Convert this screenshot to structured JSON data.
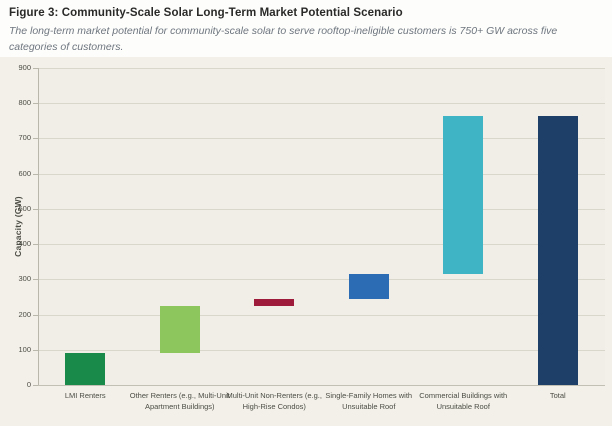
{
  "figure": {
    "title": "Figure 3: Community-Scale Solar Long-Term Market Potential Scenario",
    "subtitle": "The long-term market potential for community-scale solar to serve rooftop-ineligible customers is 750+ GW across five categories of customers."
  },
  "colors": {
    "panel_bg": "#f2f0e9",
    "plot_bg": "#f0eee6",
    "gridline": "#d9d7cc",
    "axis_line": "#b9b7ab",
    "baseline": "#c2c0b4",
    "axis_text": "#4c4c45",
    "title_text": "#2a2a28",
    "subtitle_text": "#6e767e"
  },
  "chart_data": {
    "type": "bar",
    "variant": "waterfall",
    "title": "Figure 3: Community-Scale Solar Long-Term Market Potential Scenario",
    "xlabel": "",
    "ylabel": "Capacity (GW)",
    "ylim": [
      0,
      900
    ],
    "yticks": [
      0,
      100,
      200,
      300,
      400,
      500,
      600,
      700,
      800,
      900
    ],
    "grid": true,
    "legend": false,
    "categories": [
      "LMI Renters",
      "Other Renters (e.g., Multi-Unit Apartment Buildings)",
      "Multi-Unit Non-Renters (e.g., High-Rise Condos)",
      "Single-Family Homes with Unsuitable Roof",
      "Commercial Buildings with Unsuitable Roof",
      "Total"
    ],
    "bars": [
      {
        "category": "LMI Renters",
        "start": 0,
        "end": 90,
        "value": 90,
        "color": "#1a8a4a"
      },
      {
        "category": "Other Renters (e.g., Multi-Unit Apartment Buildings)",
        "start": 90,
        "end": 225,
        "value": 135,
        "color": "#8dc65c"
      },
      {
        "category": "Multi-Unit Non-Renters (e.g., High-Rise Condos)",
        "start": 225,
        "end": 245,
        "value": 20,
        "color": "#9e1b3b"
      },
      {
        "category": "Single-Family Homes with Unsuitable Roof",
        "start": 245,
        "end": 315,
        "value": 70,
        "color": "#2b6cb5"
      },
      {
        "category": "Commercial Buildings with Unsuitable Roof",
        "start": 315,
        "end": 765,
        "value": 450,
        "color": "#3fb4c4"
      },
      {
        "category": "Total",
        "start": 0,
        "end": 765,
        "value": 765,
        "color": "#1d3f68"
      }
    ]
  }
}
